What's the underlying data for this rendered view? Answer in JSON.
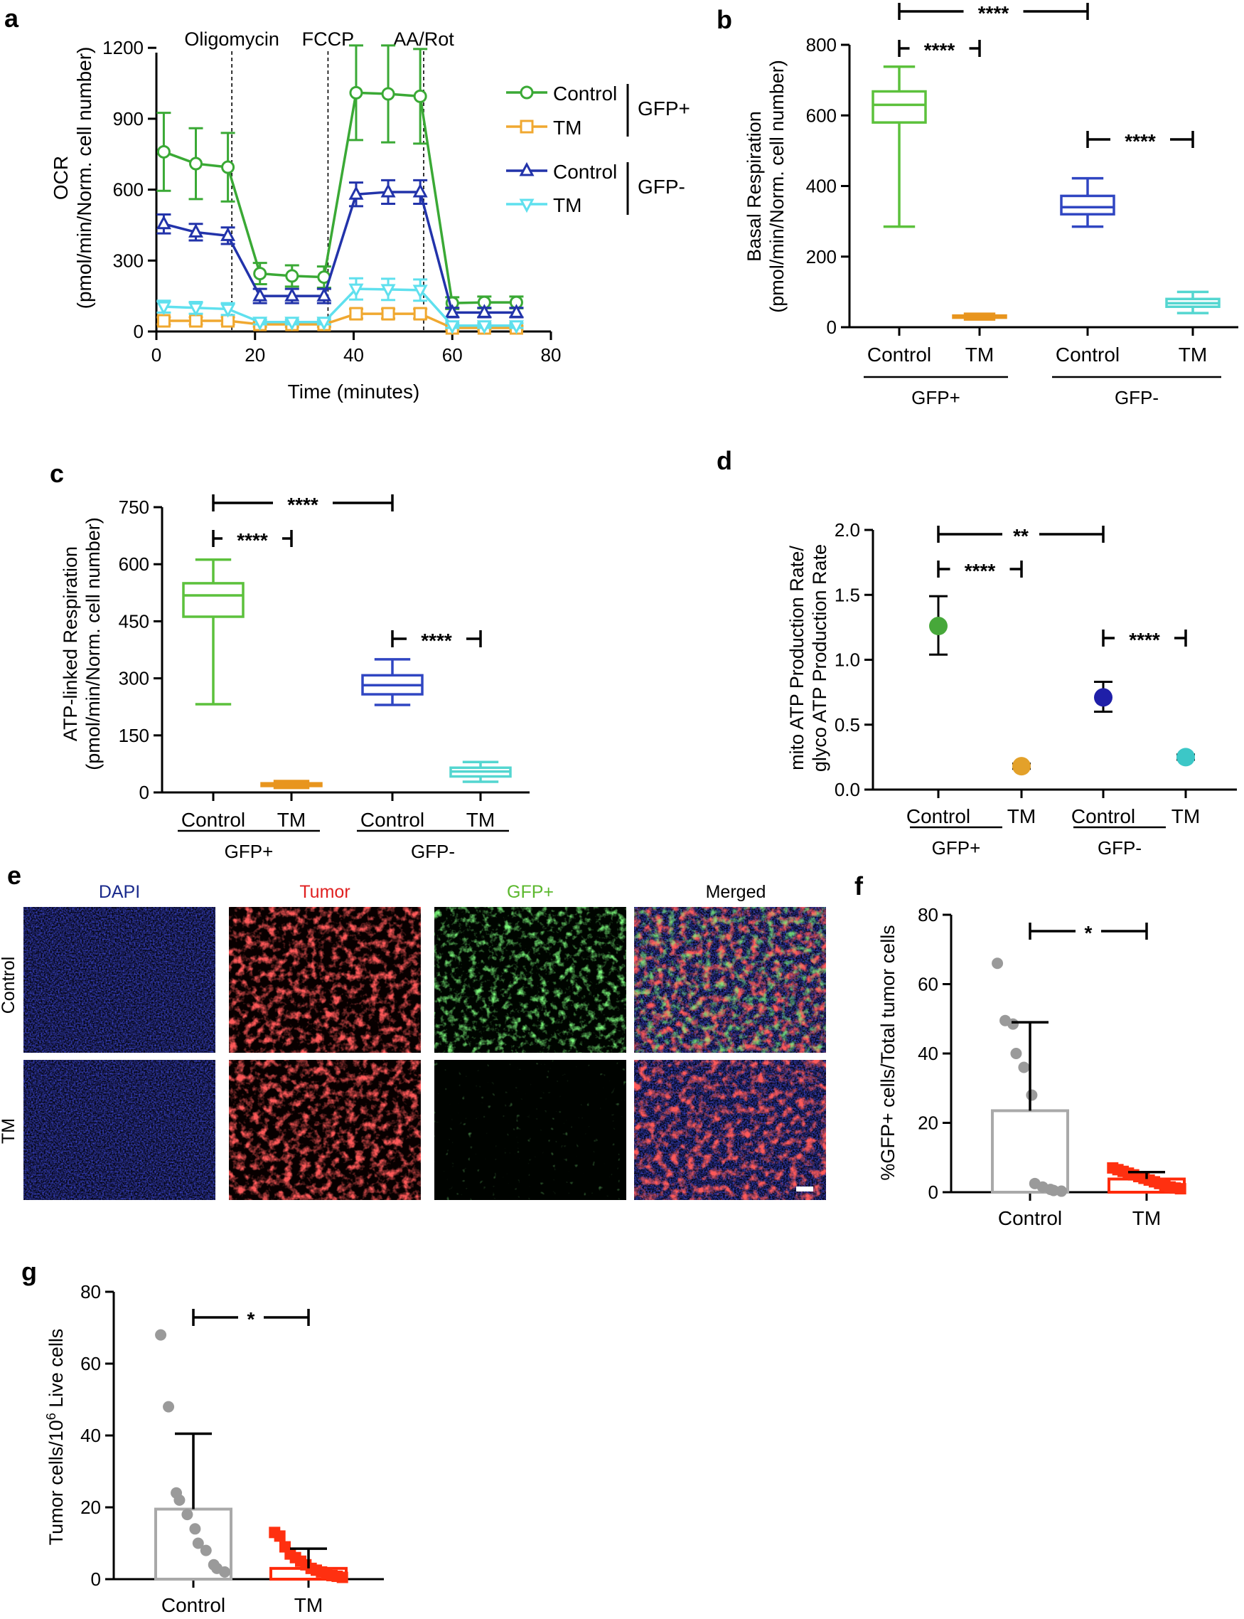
{
  "colors": {
    "gfp_pos_control": "#3aa935",
    "gfp_pos_tm": "#f0a830",
    "gfp_neg_control": "#2233aa",
    "gfp_neg_tm": "#5fe0ee",
    "box_b_control_pos": "#5cc13c",
    "box_b_tm_pos": "#e8951e",
    "box_b_control_neg": "#3046c2",
    "box_b_tm_neg": "#54d6d0",
    "d_control_pos": "#47a83a",
    "d_tm_pos": "#e3a12a",
    "d_control_neg": "#1f1fa8",
    "d_tm_neg": "#3cc7c7",
    "bar_control": "#a9a9a9",
    "bar_tm": "#ff2a0a",
    "dots_control": "#9a9a9a",
    "dots_tm": "#ff3010",
    "dapi_text": "#1a2a8c",
    "tumor_text": "#e02020",
    "gfp_text": "#5cb82e",
    "merged_text": "#000000"
  },
  "chart_data": [
    {
      "panel": "a",
      "type": "line",
      "ylabel": [
        "OCR",
        "(pmol/min/Norm. cell number)"
      ],
      "xlabel": "Time (minutes)",
      "xlim": [
        0,
        80
      ],
      "ylim": [
        0,
        1300
      ],
      "xticks": [
        "0",
        "20",
        "40",
        "60",
        "80"
      ],
      "yticks": [
        "0",
        "300",
        "600",
        "900",
        "1200"
      ],
      "injections": [
        {
          "label": "Oligomycin",
          "x": 15.3
        },
        {
          "label": "FCCP",
          "x": 34.8
        },
        {
          "label": "AA/Rot",
          "x": 54.2
        }
      ],
      "legend": [
        {
          "label": "Control",
          "series": 0
        },
        {
          "label": "TM",
          "series": 1
        },
        {
          "label": "Control",
          "series": 2
        },
        {
          "label": "TM",
          "series": 3
        }
      ],
      "legend_groups": [
        "GFP+",
        "GFP-"
      ],
      "x": [
        1.5,
        8,
        14.5,
        21,
        27.5,
        34,
        40.5,
        47,
        53.5,
        60,
        66.5,
        73
      ],
      "series": [
        {
          "group": "GFP+ Control",
          "marker": "circle",
          "color": "#3aa935",
          "values": [
            760,
            710,
            695,
            245,
            235,
            230,
            1010,
            1005,
            995,
            120,
            123,
            123
          ],
          "err": [
            165,
            150,
            145,
            45,
            45,
            45,
            200,
            205,
            200,
            25,
            25,
            25
          ]
        },
        {
          "group": "GFP+ TM",
          "marker": "square",
          "color": "#f0a830",
          "values": [
            45,
            45,
            45,
            30,
            30,
            30,
            75,
            75,
            75,
            15,
            15,
            15
          ],
          "err": [
            15,
            15,
            15,
            10,
            10,
            10,
            20,
            20,
            20,
            8,
            8,
            8
          ]
        },
        {
          "group": "GFP- Control",
          "marker": "triangle-up",
          "color": "#2233aa",
          "values": [
            455,
            420,
            405,
            150,
            150,
            150,
            580,
            590,
            590,
            80,
            80,
            80
          ],
          "err": [
            40,
            35,
            35,
            30,
            30,
            30,
            50,
            50,
            50,
            20,
            20,
            20
          ]
        },
        {
          "group": "GFP- TM",
          "marker": "triangle-down",
          "color": "#5fe0ee",
          "values": [
            105,
            100,
            95,
            40,
            40,
            40,
            180,
            178,
            175,
            25,
            25,
            25
          ],
          "err": [
            25,
            25,
            25,
            10,
            10,
            10,
            45,
            45,
            45,
            10,
            10,
            10
          ]
        }
      ]
    },
    {
      "panel": "b",
      "type": "box",
      "ylabel": [
        "Basal Respiration",
        "(pmol/min/Norm. cell number)"
      ],
      "ylim": [
        0,
        800
      ],
      "yticks": [
        "0",
        "200",
        "400",
        "600",
        "800"
      ],
      "categories": [
        "Control",
        "TM",
        "Control",
        "TM"
      ],
      "groups": [
        "GFP+",
        "GFP-"
      ],
      "boxes": [
        {
          "min": 285,
          "q1": 580,
          "median": 630,
          "q3": 668,
          "max": 738
        },
        {
          "min": 22,
          "q1": 27,
          "median": 30,
          "q3": 33,
          "max": 38
        },
        {
          "min": 285,
          "q1": 320,
          "median": 340,
          "q3": 372,
          "max": 422
        },
        {
          "min": 40,
          "q1": 58,
          "median": 68,
          "q3": 80,
          "max": 100
        }
      ],
      "brackets": [
        {
          "from": 0,
          "to": 2,
          "label": "****"
        },
        {
          "from": 0,
          "to": 1,
          "label": "****"
        },
        {
          "from": 2,
          "to": 3,
          "label": "****"
        }
      ]
    },
    {
      "panel": "c",
      "type": "box",
      "ylabel": [
        "ATP-linked Respiration",
        "(pmol/min/Norm. cell number)"
      ],
      "ylim": [
        0,
        750
      ],
      "yticks": [
        "0",
        "150",
        "300",
        "450",
        "600",
        "750"
      ],
      "categories": [
        "Control",
        "TM",
        "Control",
        "TM"
      ],
      "groups": [
        "GFP+",
        "GFP-"
      ],
      "boxes": [
        {
          "min": 232,
          "q1": 462,
          "median": 518,
          "q3": 550,
          "max": 612
        },
        {
          "min": 12,
          "q1": 17,
          "median": 20,
          "q3": 24,
          "max": 30
        },
        {
          "min": 230,
          "q1": 258,
          "median": 282,
          "q3": 308,
          "max": 350
        },
        {
          "min": 28,
          "q1": 42,
          "median": 55,
          "q3": 65,
          "max": 80
        }
      ],
      "brackets": [
        {
          "from": 0,
          "to": 2,
          "label": "****"
        },
        {
          "from": 0,
          "to": 1,
          "label": "****"
        },
        {
          "from": 2,
          "to": 3,
          "label": "****"
        }
      ]
    },
    {
      "panel": "d",
      "type": "scatter",
      "ylabel": [
        "mito ATP Production Rate/",
        "glyco ATP Production Rate"
      ],
      "ylim": [
        0,
        2.0
      ],
      "yticks": [
        "0.0",
        "0.5",
        "1.0",
        "1.5",
        "2.0"
      ],
      "categories": [
        "Control",
        "TM",
        "Control",
        "TM"
      ],
      "groups": [
        "GFP+",
        "GFP-"
      ],
      "points": [
        {
          "mean": 1.26,
          "lo": 1.04,
          "hi": 1.49
        },
        {
          "mean": 0.18,
          "lo": 0.16,
          "hi": 0.2
        },
        {
          "mean": 0.71,
          "lo": 0.6,
          "hi": 0.83
        },
        {
          "mean": 0.25,
          "lo": 0.23,
          "hi": 0.27
        }
      ],
      "brackets": [
        {
          "from": 0,
          "to": 2,
          "label": "**"
        },
        {
          "from": 0,
          "to": 1,
          "label": "****"
        },
        {
          "from": 2,
          "to": 3,
          "label": "****"
        }
      ]
    },
    {
      "panel": "f",
      "type": "bar",
      "ylabel": "%GFP+ cells/Total tumor cells",
      "ylim": [
        0,
        80
      ],
      "yticks": [
        "0",
        "20",
        "40",
        "60",
        "80"
      ],
      "categories": [
        "Control",
        "TM"
      ],
      "values": [
        23.5,
        3.8
      ],
      "err": [
        25.5,
        2.0
      ],
      "points": [
        [
          66,
          49.5,
          48.5,
          40,
          36,
          28,
          2.5,
          1.5,
          0.8,
          0.5,
          0.3
        ],
        [
          7,
          6.5,
          6,
          5.5,
          5,
          4.5,
          4,
          3.5,
          3,
          2.5,
          2,
          1.5,
          1.2,
          1
        ]
      ],
      "bracket": {
        "label": "*"
      }
    },
    {
      "panel": "g",
      "type": "bar",
      "ylabel": "Tumor cells/10^6 Live cells",
      "ylim": [
        0,
        80
      ],
      "yticks": [
        "0",
        "20",
        "40",
        "60",
        "80"
      ],
      "categories": [
        "Control",
        "TM"
      ],
      "values": [
        19.5,
        3.0
      ],
      "err": [
        21,
        5.5
      ],
      "points": [
        [
          68,
          48,
          24,
          22,
          18,
          14,
          10,
          8,
          4,
          3,
          2
        ],
        [
          13,
          12,
          9,
          7,
          6,
          5,
          4,
          3,
          2.5,
          2,
          1.5,
          1,
          0.8,
          0.5
        ]
      ],
      "bracket": {
        "label": "*"
      }
    }
  ],
  "panel_letters": [
    "a",
    "b",
    "c",
    "d",
    "e",
    "f",
    "g"
  ],
  "microscopy": {
    "columns": [
      "DAPI",
      "Tumor",
      "GFP+",
      "Merged"
    ],
    "rows": [
      "Control",
      "TM"
    ]
  }
}
